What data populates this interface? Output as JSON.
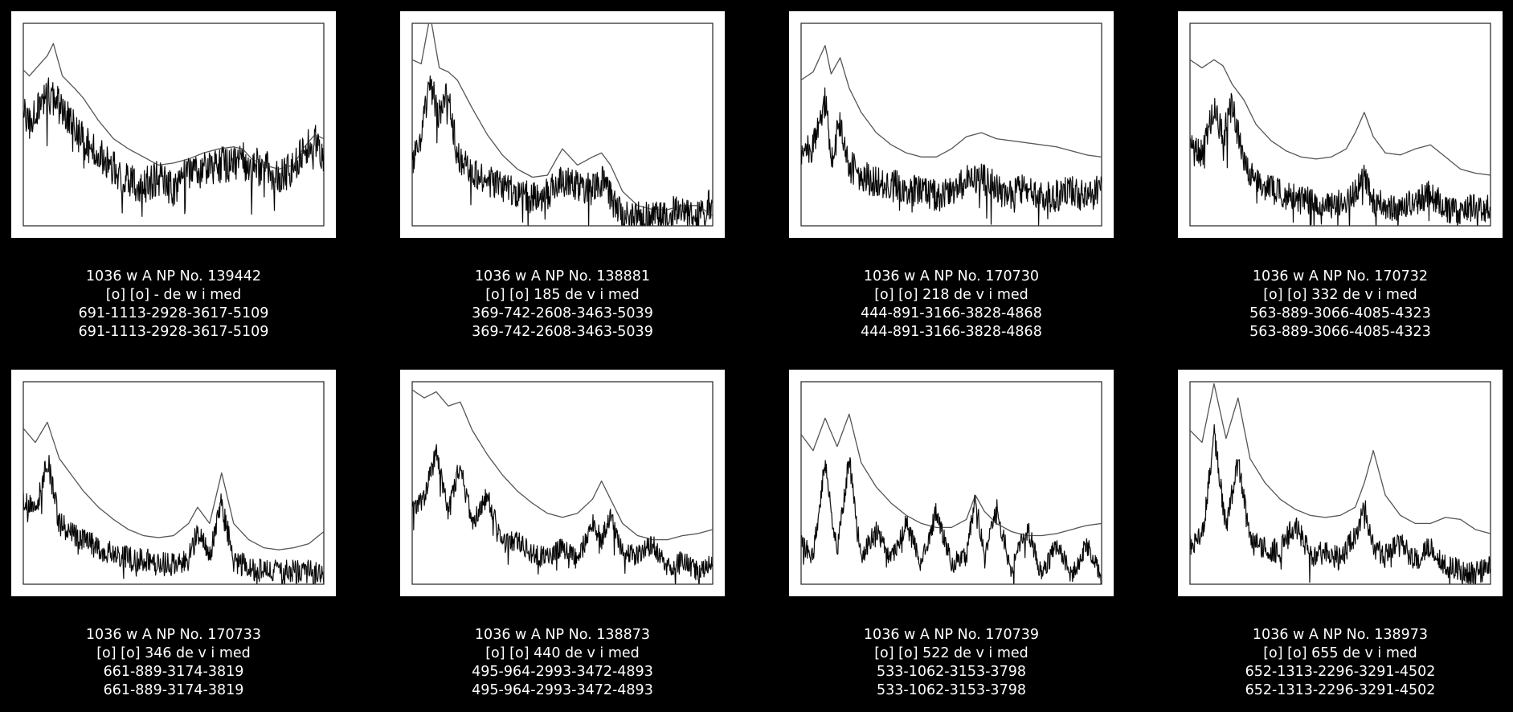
{
  "chart_data": [
    {
      "type": "line",
      "xlabel": "",
      "ylabel": "",
      "grid": false,
      "caption": [
        "1036 w A NP No. 139442",
        "[o] [o] - de w i med",
        "691-1113-2928-3617-5109",
        "691-1113-2928-3617-5109"
      ],
      "x": [
        0,
        0.02,
        0.05,
        0.08,
        0.1,
        0.13,
        0.17,
        0.2,
        0.25,
        0.3,
        0.35,
        0.4,
        0.45,
        0.5,
        0.55,
        0.6,
        0.65,
        0.7,
        0.73,
        0.76,
        0.8,
        0.85,
        0.9,
        0.93,
        0.97,
        1
      ],
      "series": [
        {
          "values": [
            0.77,
            0.74,
            0.79,
            0.84,
            0.9,
            0.74,
            0.68,
            0.63,
            0.52,
            0.43,
            0.38,
            0.34,
            0.3,
            0.31,
            0.33,
            0.36,
            0.38,
            0.39,
            0.38,
            0.33,
            0.3,
            0.28,
            0.3,
            0.38,
            0.45,
            0.43
          ]
        },
        {
          "values": [
            0.55,
            0.5,
            0.6,
            0.65,
            0.62,
            0.58,
            0.48,
            0.42,
            0.35,
            0.28,
            0.22,
            0.2,
            0.24,
            0.18,
            0.26,
            0.28,
            0.3,
            0.31,
            0.33,
            0.3,
            0.29,
            0.24,
            0.28,
            0.38,
            0.42,
            0.35
          ],
          "noise": 0.09
        }
      ]
    },
    {
      "type": "line",
      "xlabel": "",
      "ylabel": "",
      "grid": false,
      "caption": [
        "1036 w A NP No. 138881",
        "[o] [o] 185 de v i med",
        "369-742-2608-3463-5039",
        "369-742-2608-3463-5039"
      ],
      "x": [
        0,
        0.03,
        0.06,
        0.09,
        0.12,
        0.15,
        0.2,
        0.25,
        0.3,
        0.35,
        0.4,
        0.45,
        0.48,
        0.5,
        0.55,
        0.6,
        0.63,
        0.66,
        0.7,
        0.75,
        0.8,
        0.85,
        0.9,
        0.95,
        1
      ],
      "series": [
        {
          "values": [
            0.82,
            0.8,
            1.04,
            0.78,
            0.76,
            0.72,
            0.58,
            0.45,
            0.35,
            0.28,
            0.24,
            0.25,
            0.33,
            0.38,
            0.3,
            0.34,
            0.36,
            0.3,
            0.17,
            0.1,
            0.08,
            0.08,
            0.1,
            0.1,
            0.05
          ]
        },
        {
          "values": [
            0.3,
            0.45,
            0.7,
            0.55,
            0.65,
            0.35,
            0.28,
            0.22,
            0.2,
            0.16,
            0.14,
            0.16,
            0.2,
            0.22,
            0.2,
            0.18,
            0.22,
            0.14,
            0.05,
            0.04,
            0.04,
            0.06,
            0.08,
            0.05,
            0.12
          ],
          "noise": 0.08
        }
      ]
    },
    {
      "type": "line",
      "xlabel": "",
      "ylabel": "",
      "grid": false,
      "caption": [
        "1036 w A NP No. 170730",
        "[o] [o] 218 de v i med",
        "444-891-3166-3828-4868",
        "444-891-3166-3828-4868"
      ],
      "x": [
        0,
        0.04,
        0.08,
        0.1,
        0.13,
        0.16,
        0.2,
        0.25,
        0.3,
        0.35,
        0.4,
        0.45,
        0.5,
        0.55,
        0.6,
        0.65,
        0.7,
        0.75,
        0.8,
        0.85,
        0.9,
        0.95,
        1
      ],
      "series": [
        {
          "values": [
            0.72,
            0.76,
            0.89,
            0.75,
            0.83,
            0.68,
            0.56,
            0.46,
            0.4,
            0.36,
            0.34,
            0.34,
            0.38,
            0.44,
            0.46,
            0.43,
            0.42,
            0.41,
            0.4,
            0.39,
            0.37,
            0.35,
            0.34
          ]
        },
        {
          "values": [
            0.34,
            0.4,
            0.62,
            0.34,
            0.5,
            0.3,
            0.24,
            0.22,
            0.2,
            0.18,
            0.17,
            0.15,
            0.16,
            0.22,
            0.24,
            0.19,
            0.14,
            0.2,
            0.14,
            0.15,
            0.18,
            0.14,
            0.18
          ],
          "noise": 0.08
        }
      ]
    },
    {
      "type": "line",
      "xlabel": "",
      "ylabel": "",
      "grid": false,
      "caption": [
        "1036 w A NP No. 170732",
        "[o] [o] 332 de v i med",
        "563-889-3066-4085-4323",
        "563-889-3066-4085-4323"
      ],
      "x": [
        0,
        0.04,
        0.08,
        0.11,
        0.14,
        0.18,
        0.22,
        0.27,
        0.32,
        0.37,
        0.42,
        0.47,
        0.52,
        0.55,
        0.58,
        0.61,
        0.65,
        0.7,
        0.75,
        0.8,
        0.85,
        0.9,
        0.95,
        1
      ],
      "series": [
        {
          "values": [
            0.82,
            0.78,
            0.82,
            0.79,
            0.7,
            0.62,
            0.5,
            0.42,
            0.37,
            0.34,
            0.33,
            0.34,
            0.38,
            0.46,
            0.56,
            0.44,
            0.36,
            0.35,
            0.38,
            0.4,
            0.34,
            0.28,
            0.26,
            0.25
          ]
        },
        {
          "values": [
            0.4,
            0.36,
            0.58,
            0.45,
            0.6,
            0.3,
            0.22,
            0.18,
            0.15,
            0.13,
            0.12,
            0.1,
            0.12,
            0.16,
            0.24,
            0.12,
            0.1,
            0.08,
            0.12,
            0.16,
            0.08,
            0.06,
            0.1,
            0.08
          ],
          "noise": 0.07
        }
      ]
    },
    {
      "type": "line",
      "xlabel": "",
      "ylabel": "",
      "grid": false,
      "caption": [
        "1036 w A NP No. 170733",
        "[o] [o] 346 de v i med",
        "661-889-3174-3819",
        "661-889-3174-3819"
      ],
      "x": [
        0,
        0.04,
        0.08,
        0.12,
        0.16,
        0.2,
        0.25,
        0.3,
        0.35,
        0.4,
        0.45,
        0.5,
        0.55,
        0.58,
        0.62,
        0.66,
        0.7,
        0.75,
        0.8,
        0.85,
        0.9,
        0.95,
        1
      ],
      "series": [
        {
          "values": [
            0.77,
            0.7,
            0.8,
            0.62,
            0.54,
            0.46,
            0.38,
            0.32,
            0.27,
            0.24,
            0.23,
            0.24,
            0.3,
            0.38,
            0.3,
            0.55,
            0.3,
            0.22,
            0.18,
            0.17,
            0.18,
            0.2,
            0.26
          ]
        },
        {
          "values": [
            0.42,
            0.35,
            0.62,
            0.3,
            0.25,
            0.22,
            0.18,
            0.15,
            0.13,
            0.12,
            0.1,
            0.1,
            0.12,
            0.26,
            0.14,
            0.4,
            0.12,
            0.08,
            0.06,
            0.06,
            0.06,
            0.06,
            0.05
          ],
          "noise": 0.06
        }
      ]
    },
    {
      "type": "line",
      "xlabel": "",
      "ylabel": "",
      "grid": false,
      "caption": [
        "1036 w A NP No. 138873",
        "[o] [o] 440 de v i med",
        "495-964-2993-3472-4893",
        "495-964-2993-3472-4893"
      ],
      "x": [
        0,
        0.04,
        0.08,
        0.12,
        0.16,
        0.2,
        0.25,
        0.3,
        0.35,
        0.4,
        0.45,
        0.5,
        0.55,
        0.6,
        0.63,
        0.66,
        0.7,
        0.75,
        0.8,
        0.85,
        0.9,
        0.95,
        1
      ],
      "series": [
        {
          "values": [
            0.96,
            0.92,
            0.95,
            0.88,
            0.9,
            0.76,
            0.64,
            0.54,
            0.46,
            0.4,
            0.35,
            0.33,
            0.35,
            0.42,
            0.51,
            0.42,
            0.3,
            0.24,
            0.22,
            0.22,
            0.24,
            0.25,
            0.27
          ]
        },
        {
          "values": [
            0.38,
            0.42,
            0.66,
            0.36,
            0.6,
            0.3,
            0.44,
            0.2,
            0.22,
            0.15,
            0.14,
            0.18,
            0.12,
            0.3,
            0.22,
            0.34,
            0.16,
            0.14,
            0.2,
            0.08,
            0.12,
            0.06,
            0.1
          ],
          "noise": 0.05
        }
      ]
    },
    {
      "type": "line",
      "xlabel": "",
      "ylabel": "",
      "grid": false,
      "caption": [
        "1036 w A NP No. 170739",
        "[o] [o] 522 de v i med",
        "533-1062-3153-3798",
        "533-1062-3153-3798"
      ],
      "x": [
        0,
        0.04,
        0.08,
        0.12,
        0.16,
        0.2,
        0.25,
        0.3,
        0.35,
        0.4,
        0.45,
        0.5,
        0.55,
        0.58,
        0.61,
        0.65,
        0.7,
        0.75,
        0.8,
        0.85,
        0.9,
        0.95,
        1
      ],
      "series": [
        {
          "values": [
            0.74,
            0.66,
            0.82,
            0.68,
            0.84,
            0.6,
            0.48,
            0.4,
            0.34,
            0.3,
            0.28,
            0.28,
            0.32,
            0.44,
            0.36,
            0.3,
            0.26,
            0.24,
            0.24,
            0.25,
            0.27,
            0.29,
            0.3
          ]
        },
        {
          "values": [
            0.2,
            0.14,
            0.6,
            0.16,
            0.62,
            0.14,
            0.26,
            0.12,
            0.3,
            0.1,
            0.36,
            0.1,
            0.14,
            0.44,
            0.12,
            0.38,
            0.06,
            0.3,
            0.04,
            0.2,
            0.04,
            0.2,
            0.04
          ],
          "noise": 0.05
        }
      ]
    },
    {
      "type": "line",
      "xlabel": "",
      "ylabel": "",
      "grid": false,
      "caption": [
        "1036 w A NP No. 138973",
        "[o] [o] 655 de v i med",
        "652-1313-2296-3291-4502",
        "652-1313-2296-3291-4502"
      ],
      "x": [
        0,
        0.04,
        0.08,
        0.12,
        0.16,
        0.2,
        0.25,
        0.3,
        0.35,
        0.4,
        0.45,
        0.5,
        0.55,
        0.58,
        0.61,
        0.65,
        0.7,
        0.75,
        0.8,
        0.85,
        0.9,
        0.95,
        1
      ],
      "series": [
        {
          "values": [
            0.76,
            0.7,
            0.99,
            0.72,
            0.92,
            0.62,
            0.5,
            0.42,
            0.37,
            0.34,
            0.33,
            0.34,
            0.38,
            0.5,
            0.66,
            0.44,
            0.34,
            0.3,
            0.3,
            0.33,
            0.32,
            0.27,
            0.25
          ]
        },
        {
          "values": [
            0.2,
            0.22,
            0.74,
            0.28,
            0.62,
            0.2,
            0.18,
            0.16,
            0.3,
            0.14,
            0.16,
            0.12,
            0.24,
            0.38,
            0.18,
            0.14,
            0.2,
            0.12,
            0.18,
            0.1,
            0.06,
            0.05,
            0.08
          ],
          "noise": 0.06
        }
      ]
    }
  ],
  "colors": {
    "background": "#000000",
    "panel": "#ffffff",
    "envelope_line": "#555555",
    "spectrum_line": "#000000",
    "caption_text": "#ffffff"
  }
}
